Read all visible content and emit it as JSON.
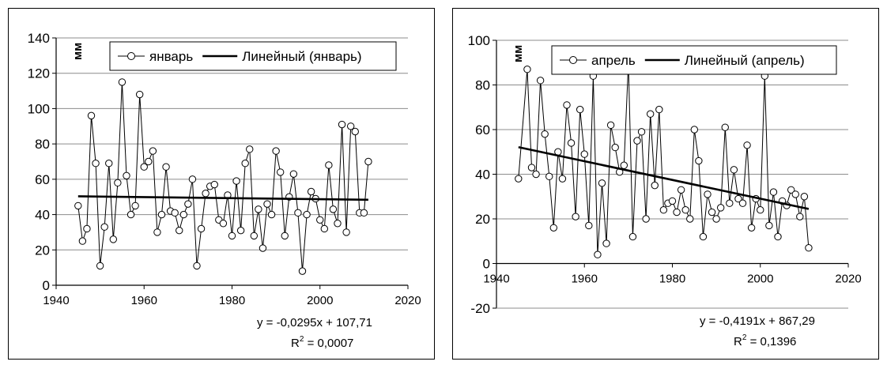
{
  "chart_data": [
    {
      "type": "line",
      "ylabel": "мм",
      "xlim": [
        1940,
        2020
      ],
      "ylim": [
        0,
        140
      ],
      "x_ticks": [
        1940,
        1960,
        1980,
        2000,
        2020
      ],
      "y_ticks": [
        0,
        20,
        40,
        60,
        80,
        100,
        120,
        140
      ],
      "grid": true,
      "legend_position": "top-right",
      "series": [
        {
          "name": "январь",
          "style": "line-with-hollow-markers",
          "x": [
            1945,
            1946,
            1947,
            1948,
            1949,
            1950,
            1951,
            1952,
            1953,
            1954,
            1955,
            1956,
            1957,
            1958,
            1959,
            1960,
            1961,
            1962,
            1963,
            1964,
            1965,
            1966,
            1967,
            1968,
            1969,
            1970,
            1971,
            1972,
            1973,
            1974,
            1975,
            1976,
            1977,
            1978,
            1979,
            1980,
            1981,
            1982,
            1983,
            1984,
            1985,
            1986,
            1987,
            1988,
            1989,
            1990,
            1991,
            1992,
            1993,
            1994,
            1995,
            1996,
            1997,
            1998,
            1999,
            2000,
            2001,
            2002,
            2003,
            2004,
            2005,
            2006,
            2007,
            2008,
            2009,
            2010,
            2011
          ],
          "y": [
            45,
            25,
            32,
            96,
            69,
            11,
            33,
            69,
            26,
            58,
            115,
            62,
            40,
            45,
            108,
            67,
            70,
            76,
            30,
            40,
            67,
            42,
            41,
            31,
            40,
            46,
            60,
            11,
            32,
            52,
            56,
            57,
            37,
            35,
            51,
            28,
            59,
            31,
            69,
            77,
            28,
            43,
            21,
            46,
            40,
            76,
            64,
            28,
            50,
            63,
            41,
            8,
            40,
            53,
            49,
            37,
            32,
            68,
            43,
            35,
            91,
            30,
            90,
            87,
            41,
            41,
            70
          ]
        },
        {
          "name": "Линейный (январь)",
          "style": "trendline",
          "x": [
            1945,
            2011
          ],
          "y": [
            50.33,
            48.38
          ]
        }
      ],
      "annotations": [
        "y = -0,0295x + 107,71",
        "R",
        "2",
        " = 0,0007"
      ]
    },
    {
      "type": "line",
      "ylabel": "мм",
      "xlim": [
        1940,
        2020
      ],
      "ylim": [
        -20,
        100
      ],
      "x_ticks": [
        1940,
        1960,
        1980,
        2000,
        2020
      ],
      "y_ticks": [
        -20,
        0,
        20,
        40,
        60,
        80,
        100
      ],
      "grid": true,
      "legend_position": "top-right",
      "series": [
        {
          "name": "апрель",
          "style": "line-with-hollow-markers",
          "x": [
            1945,
            1947,
            1948,
            1949,
            1950,
            1951,
            1952,
            1953,
            1954,
            1955,
            1956,
            1957,
            1958,
            1959,
            1960,
            1961,
            1962,
            1963,
            1964,
            1965,
            1966,
            1967,
            1968,
            1969,
            1970,
            1971,
            1972,
            1973,
            1974,
            1975,
            1976,
            1977,
            1978,
            1979,
            1980,
            1981,
            1982,
            1983,
            1984,
            1985,
            1986,
            1987,
            1988,
            1989,
            1990,
            1991,
            1992,
            1993,
            1994,
            1995,
            1996,
            1997,
            1998,
            1999,
            2000,
            2001,
            2002,
            2003,
            2004,
            2005,
            2006,
            2007,
            2008,
            2009,
            2010,
            2011
          ],
          "y": [
            38,
            87,
            43,
            40,
            82,
            58,
            39,
            16,
            50,
            38,
            71,
            54,
            21,
            69,
            49,
            17,
            84,
            4,
            36,
            9,
            62,
            52,
            41,
            44,
            90,
            12,
            55,
            59,
            20,
            67,
            35,
            69,
            24,
            27,
            28,
            23,
            33,
            24,
            20,
            60,
            46,
            12,
            31,
            23,
            20,
            25,
            61,
            27,
            42,
            29,
            27,
            53,
            16,
            29,
            24,
            84,
            17,
            32,
            12,
            28,
            26,
            33,
            31,
            21,
            30,
            7
          ]
        },
        {
          "name": "Линейный (апрель)",
          "style": "trendline",
          "x": [
            1945,
            2011
          ],
          "y": [
            52.11,
            24.45
          ]
        }
      ],
      "annotations": [
        "y = -0,4191x + 867,29",
        "R",
        "2",
        " = 0,1396"
      ]
    }
  ]
}
